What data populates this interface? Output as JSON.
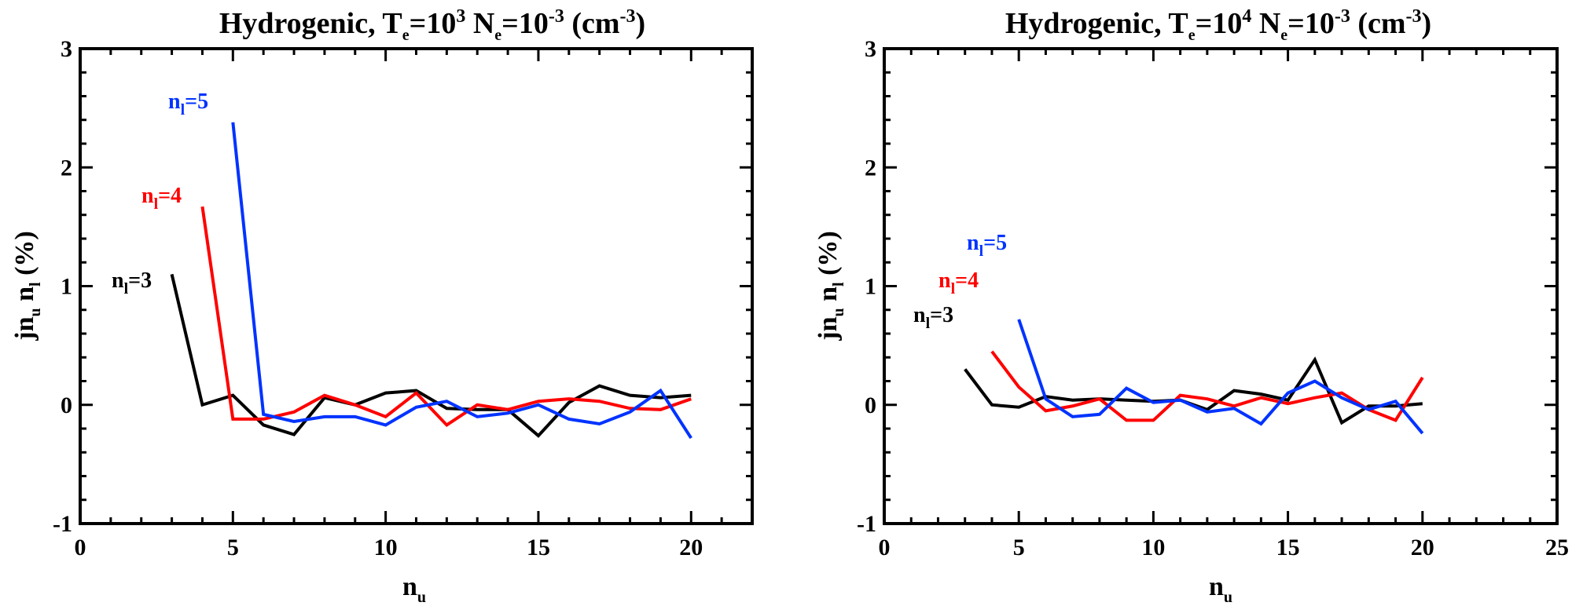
{
  "chart_data": [
    {
      "type": "line",
      "title": {
        "text": "Hydrogenic, T",
        "te_sub": "e",
        "eq1": "=10",
        "t_exp": "3",
        "ne": " N",
        "ne_sub": "e",
        "eq2": "=10",
        "n_exp": "-3",
        "unit": " (cm",
        "unit_exp": "-3",
        "close": ")"
      },
      "xlabel": {
        "main": "n",
        "sub": "u"
      },
      "ylabel": {
        "j": "j",
        "n1": "n",
        "n1_sub": "u",
        "n2": " n",
        "n2_sub": "l",
        "pct": " (%)"
      },
      "xlim": [
        0,
        22
      ],
      "ylim": [
        -1,
        3
      ],
      "xticks": [
        0,
        5,
        10,
        15,
        20
      ],
      "xtick_labels": [
        "0",
        "5",
        "10",
        "15",
        "20"
      ],
      "yticks": [
        -1,
        0,
        1,
        2,
        3
      ],
      "ytick_labels": [
        "-1",
        "0",
        "1",
        "2",
        "3"
      ],
      "series": [
        {
          "name": "n_l=3",
          "color": "#000000",
          "x": [
            3,
            4,
            5,
            6,
            7,
            8,
            9,
            10,
            11,
            12,
            13,
            14,
            15,
            16,
            17,
            18,
            19,
            20
          ],
          "values": [
            1.1,
            0.0,
            0.08,
            -0.17,
            -0.25,
            0.06,
            0.0,
            0.1,
            0.12,
            -0.03,
            -0.04,
            -0.04,
            -0.26,
            0.02,
            0.16,
            0.08,
            0.06,
            0.08
          ]
        },
        {
          "name": "n_l=4",
          "color": "#ff0000",
          "x": [
            4,
            5,
            6,
            7,
            8,
            9,
            10,
            11,
            12,
            13,
            14,
            15,
            16,
            17,
            18,
            19,
            20
          ],
          "values": [
            1.67,
            -0.12,
            -0.12,
            -0.06,
            0.08,
            0.0,
            -0.1,
            0.1,
            -0.17,
            0.0,
            -0.04,
            0.03,
            0.05,
            0.03,
            -0.03,
            -0.04,
            0.05
          ]
        },
        {
          "name": "n_l=5",
          "color": "#0033ff",
          "x": [
            5,
            6,
            7,
            8,
            9,
            10,
            11,
            12,
            13,
            14,
            15,
            16,
            17,
            18,
            19,
            20
          ],
          "values": [
            2.38,
            -0.08,
            -0.14,
            -0.1,
            -0.1,
            -0.17,
            -0.02,
            0.03,
            -0.1,
            -0.07,
            0.0,
            -0.12,
            -0.16,
            -0.06,
            0.12,
            -0.28
          ]
        }
      ],
      "annotations": [
        {
          "n": "n",
          "sub": "l",
          "eq": "=3",
          "color": "#000000"
        },
        {
          "n": "n",
          "sub": "l",
          "eq": "=4",
          "color": "#ff0000"
        },
        {
          "n": "n",
          "sub": "l",
          "eq": "=5",
          "color": "#0033ff"
        }
      ]
    },
    {
      "type": "line",
      "title": {
        "text": "Hydrogenic, T",
        "te_sub": "e",
        "eq1": "=10",
        "t_exp": "4",
        "ne": " N",
        "ne_sub": "e",
        "eq2": "=10",
        "n_exp": "-3",
        "unit": " (cm",
        "unit_exp": "-3",
        "close": ")"
      },
      "xlabel": {
        "main": "n",
        "sub": "u"
      },
      "ylabel": {
        "j": "j",
        "n1": "n",
        "n1_sub": "u",
        "n2": " n",
        "n2_sub": "l",
        "pct": " (%)"
      },
      "xlim": [
        0,
        25
      ],
      "ylim": [
        -1,
        3
      ],
      "xticks": [
        0,
        5,
        10,
        15,
        20,
        25
      ],
      "xtick_labels": [
        "0",
        "5",
        "10",
        "15",
        "20",
        "25"
      ],
      "yticks": [
        -1,
        0,
        1,
        2,
        3
      ],
      "ytick_labels": [
        "-1",
        "0",
        "1",
        "2",
        "3"
      ],
      "series": [
        {
          "name": "n_l=3",
          "color": "#000000",
          "x": [
            3,
            4,
            5,
            6,
            7,
            8,
            9,
            10,
            11,
            12,
            13,
            14,
            15,
            16,
            17,
            18,
            19,
            20
          ],
          "values": [
            0.3,
            0.0,
            -0.02,
            0.07,
            0.04,
            0.05,
            0.04,
            0.03,
            0.04,
            -0.04,
            0.12,
            0.09,
            0.04,
            0.38,
            -0.15,
            -0.01,
            -0.01,
            0.01
          ]
        },
        {
          "name": "n_l=4",
          "color": "#ff0000",
          "x": [
            4,
            5,
            6,
            7,
            8,
            9,
            10,
            11,
            12,
            13,
            14,
            15,
            16,
            17,
            18,
            19,
            20
          ],
          "values": [
            0.45,
            0.15,
            -0.05,
            -0.01,
            0.05,
            -0.13,
            -0.13,
            0.08,
            0.05,
            -0.01,
            0.06,
            0.01,
            0.06,
            0.1,
            -0.04,
            -0.13,
            0.23
          ]
        },
        {
          "name": "n_l=5",
          "color": "#0033ff",
          "x": [
            5,
            6,
            7,
            8,
            9,
            10,
            11,
            12,
            13,
            14,
            15,
            16,
            17,
            18,
            19,
            20
          ],
          "values": [
            0.72,
            0.05,
            -0.1,
            -0.08,
            0.14,
            0.02,
            0.04,
            -0.06,
            -0.03,
            -0.16,
            0.1,
            0.2,
            0.06,
            -0.04,
            0.03,
            -0.24
          ]
        }
      ],
      "annotations": [
        {
          "n": "n",
          "sub": "l",
          "eq": "=3",
          "color": "#000000"
        },
        {
          "n": "n",
          "sub": "l",
          "eq": "=4",
          "color": "#ff0000"
        },
        {
          "n": "n",
          "sub": "l",
          "eq": "=5",
          "color": "#0033ff"
        }
      ]
    }
  ]
}
